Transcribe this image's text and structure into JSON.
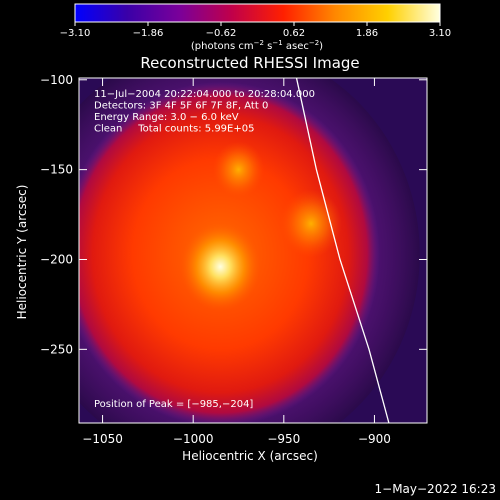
{
  "chart_data": {
    "type": "heatmap",
    "title": "Reconstructed RHESSI Image",
    "xlabel": "Heliocentric X (arcsec)",
    "ylabel": "Heliocentric Y (arcsec)",
    "xlim": [
      -1063,
      -871
    ],
    "ylim": [
      -291,
      -99
    ],
    "x_ticks": [
      -1050,
      -1000,
      -950,
      -900
    ],
    "x_tick_labels": [
      "−1050",
      "−1000",
      "−950",
      "−900"
    ],
    "y_ticks": [
      -100,
      -150,
      -200,
      -250
    ],
    "y_tick_labels": [
      "−100",
      "−150",
      "−200",
      "−250"
    ],
    "colorbar": {
      "range": [
        -3.1,
        3.1
      ],
      "tick_labels": [
        "−3.10",
        "−1.86",
        "−0.62",
        "0.62",
        "1.86",
        "3.10"
      ],
      "tick_values": [
        -3.1,
        -1.86,
        -0.62,
        0.62,
        1.86,
        3.1
      ],
      "units_prefix": "(photons cm",
      "units_exp1": "−2",
      "units_mid1": " s",
      "units_exp2": "−1",
      "units_mid2": " asec",
      "units_exp3": "−2",
      "units_suffix": ")",
      "colormap": [
        "#0000ff",
        "#3a00a8",
        "#7a009a",
        "#c0004a",
        "#ff2000",
        "#ff8800",
        "#ffd000",
        "#ffffe0"
      ]
    },
    "annotations": [
      "11−Jul−2004 20:22:04.000 to 20:28:04.000",
      "Detectors: 3F 4F 5F 6F 7F 8F, Att 0",
      "Energy Range: 3.0 − 6.0 keV",
      "Clean     Total counts: 5.99E+05"
    ],
    "peak_label": "Position of Peak = [−985,−204]",
    "peak": [
      -985,
      -204
    ],
    "limb_curve": [
      [
        -943,
        -99
      ],
      [
        -932,
        -150
      ],
      [
        -919,
        -200
      ],
      [
        -903,
        -250
      ],
      [
        -892,
        -291
      ]
    ],
    "source": {
      "center": [
        -985,
        -197
      ],
      "radius_x": 88,
      "radius_y": 96,
      "bright_spots": [
        {
          "x": -985,
          "y": -204,
          "level": 3.1
        },
        {
          "x": -935,
          "y": -180,
          "level": 2.0
        },
        {
          "x": -975,
          "y": -150,
          "level": 1.4
        }
      ],
      "background_level": -1.4,
      "outside_level": -3.0
    }
  },
  "footer_timestamp": "1−May−2022 16:23",
  "colors": {
    "background": "#000000",
    "axes": "#ffffff",
    "limb": "#ffffff"
  }
}
